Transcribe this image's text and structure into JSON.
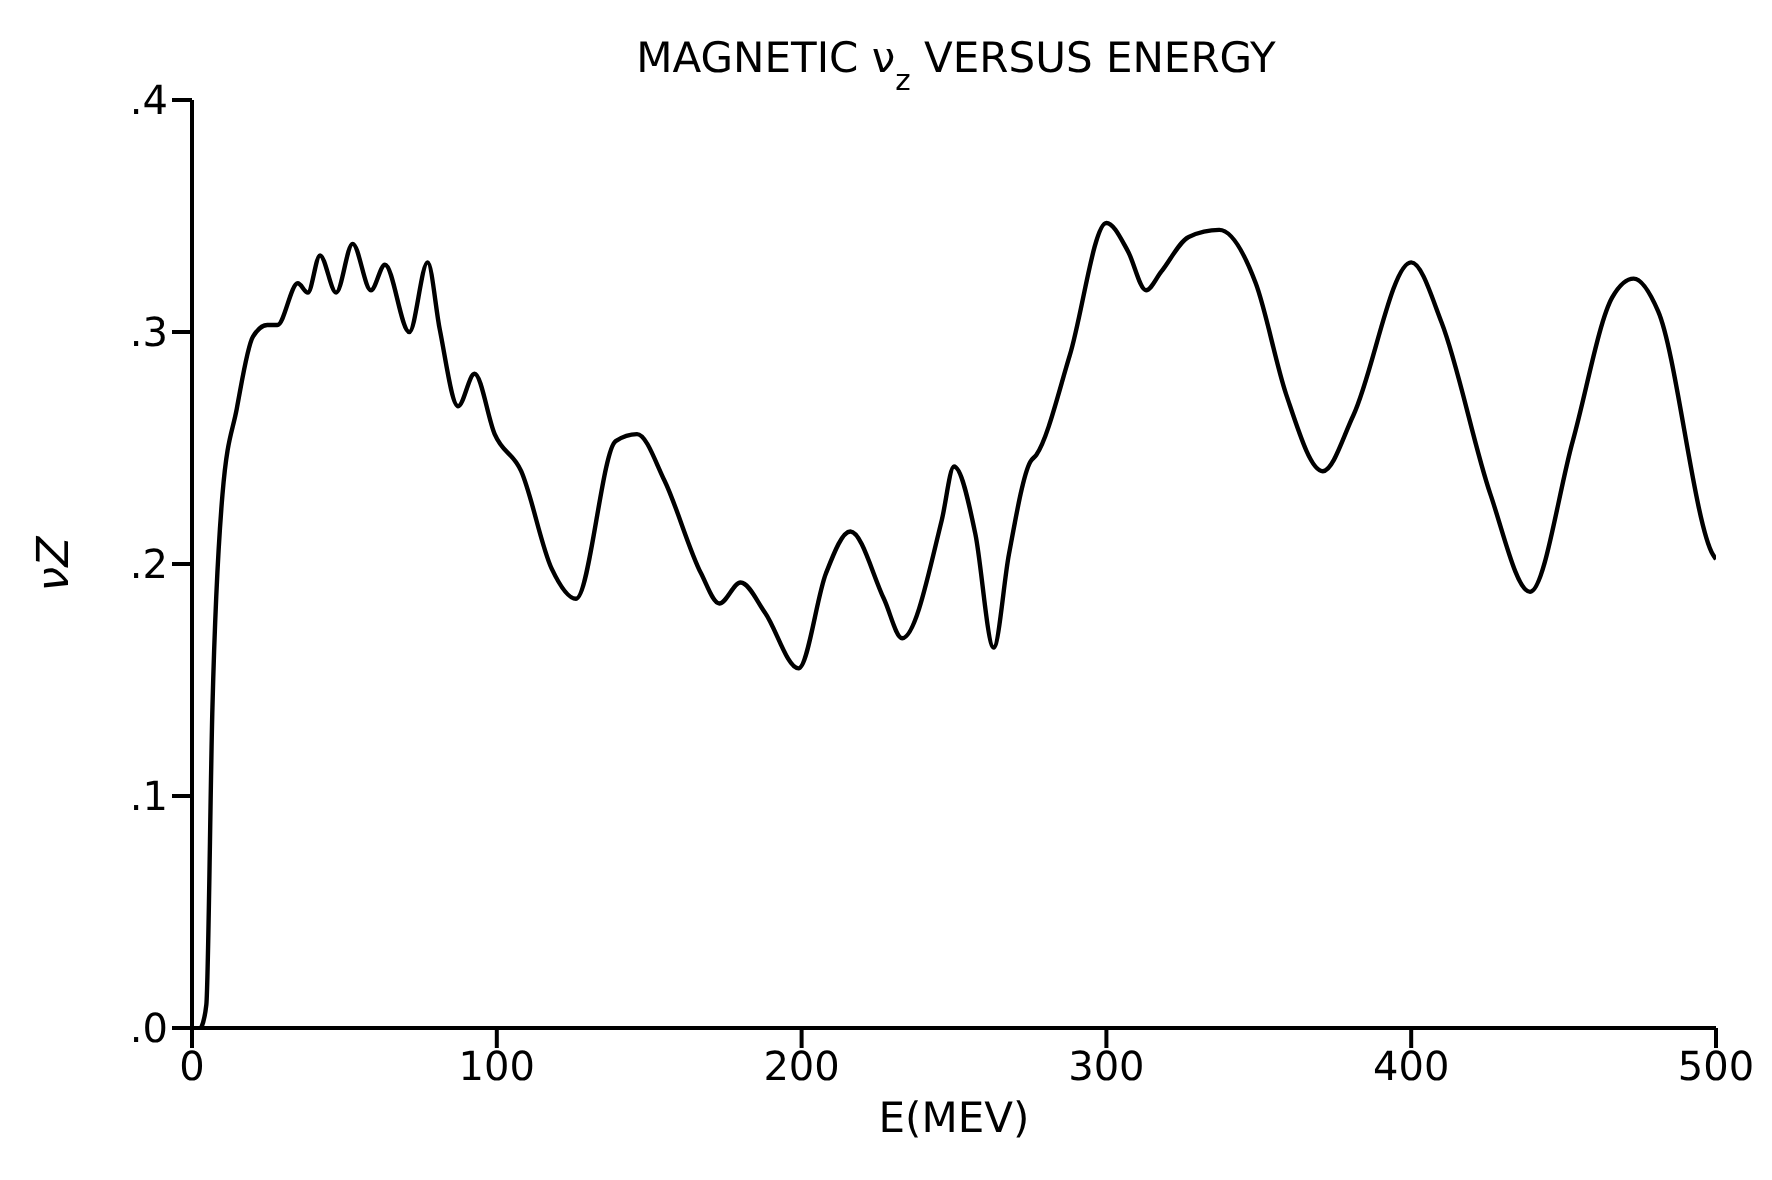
{
  "chart_data": {
    "type": "line",
    "title": "MAGNETIC ν$_{z}$ VERSUS ENERGY",
    "xlabel": "E(MEV)",
    "ylabel": "νZ",
    "x": [
      3,
      4.7,
      6.7,
      10,
      14.7,
      20,
      24.7,
      28,
      34.7,
      38,
      42,
      47.3,
      52.7,
      58.7,
      63.3,
      71.3,
      77.3,
      81.3,
      87.3,
      92.7,
      99.3,
      108,
      118,
      126,
      139,
      146,
      155,
      167,
      173,
      180,
      188,
      199,
      208,
      216,
      227,
      233,
      246,
      250,
      257,
      263,
      268,
      275,
      277,
      288,
      300,
      307,
      313,
      318,
      327,
      337,
      349,
      359,
      371,
      381,
      400,
      410,
      426,
      439,
      453,
      466,
      473,
      481,
      499,
      500
    ],
    "series": [
      {
        "color": "#000000",
        "values": [
          0,
          0.01,
          0.138,
          0.23,
          0.267,
          0.298,
          0.303,
          0.303,
          0.321,
          0.317,
          0.333,
          0.317,
          0.338,
          0.318,
          0.329,
          0.3,
          0.33,
          0.301,
          0.268,
          0.282,
          0.256,
          0.24,
          0.198,
          0.185,
          0.253,
          0.256,
          0.236,
          0.196,
          0.183,
          0.192,
          0.179,
          0.155,
          0.196,
          0.214,
          0.185,
          0.168,
          0.219,
          0.242,
          0.213,
          0.164,
          0.204,
          0.244,
          0.247,
          0.29,
          0.347,
          0.335,
          0.318,
          0.326,
          0.341,
          0.344,
          0.321,
          0.273,
          0.24,
          0.264,
          0.33,
          0.304,
          0.23,
          0.188,
          0.253,
          0.315,
          0.323,
          0.309,
          0.204,
          0.202
        ]
      }
    ],
    "xlim": [
      0,
      500
    ],
    "xticks": [
      0,
      100,
      200,
      300,
      400,
      500
    ],
    "ylim": [
      0,
      0.4
    ],
    "yticks": [
      {
        "value": 0,
        "label": ".0"
      },
      {
        "value": 0.1,
        "label": ".1"
      },
      {
        "value": 0.2,
        "label": ".2"
      },
      {
        "value": 0.3,
        "label": ".3"
      },
      {
        "value": 0.4,
        "label": ".4"
      }
    ],
    "grid": false,
    "legend": false,
    "marker": "none",
    "line_style": "solid"
  }
}
